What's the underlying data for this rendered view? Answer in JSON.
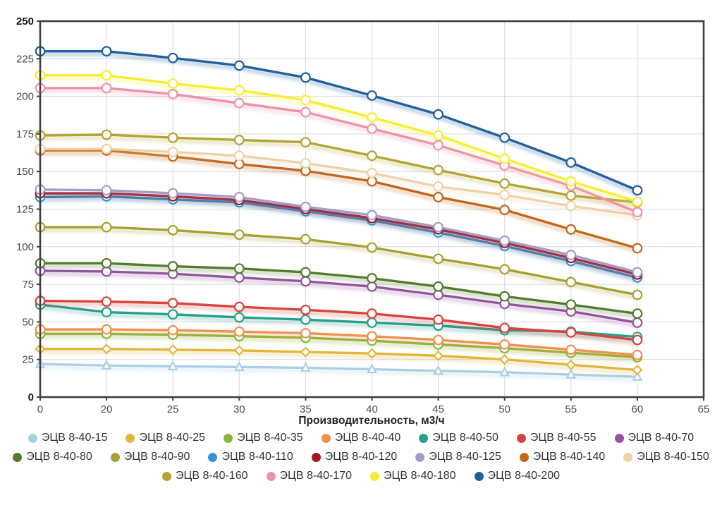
{
  "chart_data": {
    "type": "line",
    "title": "",
    "xlabel": "Производительность, м3/ч",
    "ylabel": "",
    "x_categories": [
      0,
      20,
      25,
      30,
      35,
      40,
      45,
      50,
      55,
      60
    ],
    "x_extra_tick": 65,
    "y_ticks": [
      0,
      25,
      50,
      75,
      100,
      125,
      150,
      175,
      200,
      225,
      250
    ],
    "ylim": [
      0,
      250
    ],
    "grid": true,
    "legend_position": "bottom",
    "series": [
      {
        "name": "ЭЦВ 8-40-15",
        "color": "#abcfe5",
        "marker": "triangle",
        "values": [
          22,
          21,
          20.5,
          20,
          19.5,
          18.5,
          17.5,
          16.5,
          15,
          13.5
        ]
      },
      {
        "name": "ЭЦВ 8-40-25",
        "color": "#e3b53a",
        "marker": "diamond",
        "values": [
          32,
          32,
          31.5,
          31,
          30,
          29,
          27.5,
          25,
          21.5,
          18
        ]
      },
      {
        "name": "ЭЦВ 8-40-35",
        "color": "#8cb63c",
        "marker": "circle",
        "values": [
          42,
          42,
          41.5,
          40.5,
          39.5,
          37.5,
          35,
          32.5,
          29.5,
          26.5
        ]
      },
      {
        "name": "ЭЦВ 8-40-40",
        "color": "#f0914f",
        "marker": "circle",
        "values": [
          45,
          45,
          44.5,
          43.5,
          42.5,
          40.5,
          38,
          35,
          31.5,
          28
        ]
      },
      {
        "name": "ЭЦВ 8-40-50",
        "color": "#26a08c",
        "marker": "circle",
        "values": [
          61.5,
          56.5,
          55,
          53,
          51.5,
          49.5,
          47.5,
          44.5,
          43.5,
          40
        ]
      },
      {
        "name": "ЭЦВ 8-40-55",
        "color": "#d9443c",
        "marker": "circle",
        "values": [
          64,
          63.5,
          62.5,
          60,
          58,
          55.5,
          51.5,
          46,
          43,
          38
        ]
      },
      {
        "name": "ЭЦВ 8-40-70",
        "color": "#94549f",
        "marker": "circle",
        "values": [
          84,
          83.5,
          82,
          79.5,
          77,
          73.5,
          68,
          62,
          57,
          49.5
        ]
      },
      {
        "name": "ЭЦВ 8-40-80",
        "color": "#527c2e",
        "marker": "circle",
        "values": [
          89,
          89,
          87,
          85.5,
          83,
          79,
          73.5,
          67,
          61.5,
          55.5
        ]
      },
      {
        "name": "ЭЦВ 8-40-90",
        "color": "#a7a031",
        "marker": "circle",
        "values": [
          113,
          113,
          111,
          108,
          105,
          99.5,
          92,
          85,
          76.5,
          68
        ]
      },
      {
        "name": "ЭЦВ 8-40-110",
        "color": "#2f94cf",
        "marker": "circle",
        "values": [
          133,
          133.5,
          131.5,
          129.5,
          123.5,
          117.5,
          109.5,
          100.5,
          90.5,
          79.5
        ]
      },
      {
        "name": "ЭЦВ 8-40-120",
        "color": "#9e1a20",
        "marker": "circle",
        "values": [
          135.5,
          135.5,
          133.5,
          131,
          125,
          119,
          111.5,
          102.5,
          92.5,
          81.5
        ]
      },
      {
        "name": "ЭЦВ 8-40-125",
        "color": "#a89cc8",
        "marker": "circle",
        "values": [
          138,
          137.5,
          135.5,
          133,
          126.5,
          121,
          113,
          104,
          94.5,
          83
        ]
      },
      {
        "name": "ЭЦВ 8-40-140",
        "color": "#c3671b",
        "marker": "circle",
        "values": [
          164,
          164,
          160,
          155,
          150.5,
          143.5,
          133,
          124.5,
          111.5,
          99
        ]
      },
      {
        "name": "ЭЦВ 8-40-150",
        "color": "#eed2a8",
        "marker": "circle",
        "values": [
          165,
          165,
          163,
          160.5,
          155.5,
          149,
          140,
          134.5,
          127,
          121
        ]
      },
      {
        "name": "ЭЦВ 8-40-160",
        "color": "#b3a432",
        "marker": "circle",
        "values": [
          174,
          174.5,
          172.5,
          171,
          169.5,
          160.5,
          151,
          142,
          134,
          129.5
        ]
      },
      {
        "name": "ЭЦВ 8-40-170",
        "color": "#f191a7",
        "marker": "circle",
        "values": [
          205.5,
          205.5,
          201.5,
          195.5,
          189.5,
          178.5,
          167.5,
          154,
          140.5,
          123
        ]
      },
      {
        "name": "ЭЦВ 8-40-180",
        "color": "#f6ee33",
        "marker": "circle",
        "values": [
          214,
          214,
          208.5,
          204,
          197.5,
          186,
          174,
          158.5,
          143.5,
          130
        ]
      },
      {
        "name": "ЭЦВ 8-40-200",
        "color": "#20609e",
        "marker": "circle",
        "values": [
          230,
          230,
          225.5,
          220.5,
          212.5,
          200.5,
          188,
          172.5,
          156,
          137.5
        ]
      }
    ]
  }
}
